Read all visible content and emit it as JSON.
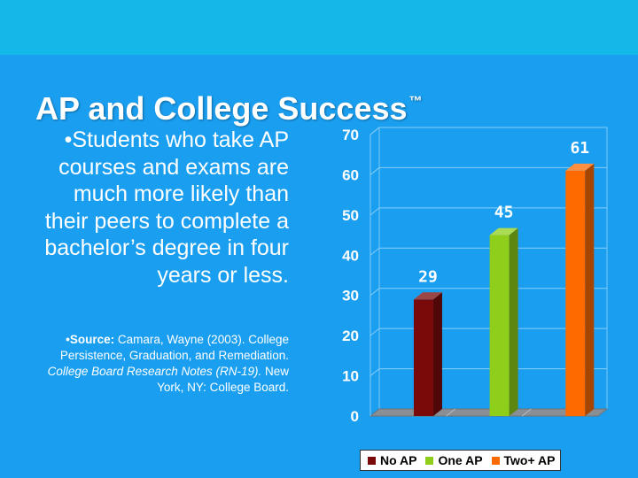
{
  "slide": {
    "title": "AP and College Success",
    "title_mark": "™",
    "bullet": "•Students who take AP courses and exams are much more likely than their peers to complete a bachelor’s degree in four years or less.",
    "source": {
      "label": "•Source:",
      "text1": " Camara, Wayne (2003). College Persistence, Graduation, and Remediation. ",
      "italic": "College Board Research Notes (RN-19).",
      "text2": " New York, NY: College Board."
    }
  },
  "colors": {
    "background": "#1a9ef0",
    "top_band": "#14b8e8"
  },
  "chart_data": {
    "type": "bar",
    "categories": [
      "No AP",
      "One AP",
      "Two+ AP"
    ],
    "values": [
      29,
      45,
      61
    ],
    "data_labels": [
      "29",
      "45",
      "61"
    ],
    "colors": [
      "#7a0a0a",
      "#8fce1a",
      "#ff6a00"
    ],
    "ylim": [
      0,
      70
    ],
    "yticks": [
      "0",
      "10",
      "20",
      "30",
      "40",
      "50",
      "60",
      "70"
    ],
    "grid": true,
    "style": "3d",
    "legend": "bottom",
    "title": "",
    "xlabel": "",
    "ylabel": ""
  }
}
